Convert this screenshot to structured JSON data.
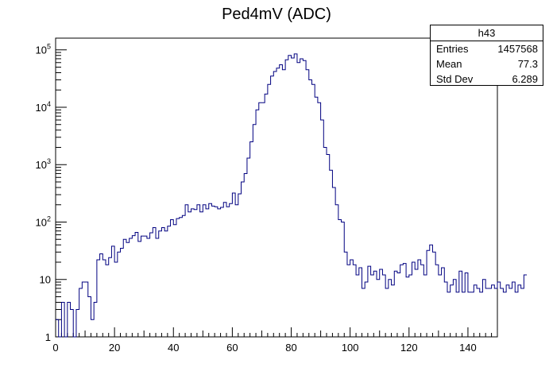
{
  "chart_data": {
    "type": "histogram",
    "title": "Ped4mV (ADC)",
    "xlabel": "",
    "ylabel": "",
    "y_scale": "log",
    "xlim": [
      0,
      150
    ],
    "ylim": [
      1,
      160000
    ],
    "bin_width": 1,
    "x_ticks": [
      0,
      20,
      40,
      60,
      80,
      100,
      120,
      140
    ],
    "y_ticks": [
      {
        "value": 1,
        "label_base": "1",
        "label_exp": ""
      },
      {
        "value": 10,
        "label_base": "10",
        "label_exp": ""
      },
      {
        "value": 100,
        "label_base": "10",
        "label_exp": "2"
      },
      {
        "value": 1000,
        "label_base": "10",
        "label_exp": "3"
      },
      {
        "value": 10000,
        "label_base": "10",
        "label_exp": "4"
      },
      {
        "value": 100000,
        "label_base": "10",
        "label_exp": "5"
      }
    ],
    "line_color": "#000080",
    "bin_contents": [
      2,
      1,
      4,
      1,
      4,
      3,
      1,
      3,
      7,
      9,
      9,
      5,
      2,
      4,
      22,
      28,
      22,
      18,
      24,
      38,
      20,
      30,
      35,
      50,
      44,
      52,
      58,
      66,
      46,
      57,
      57,
      52,
      65,
      80,
      52,
      70,
      80,
      70,
      85,
      110,
      90,
      115,
      120,
      130,
      200,
      150,
      170,
      165,
      200,
      150,
      200,
      170,
      210,
      190,
      185,
      170,
      180,
      220,
      185,
      210,
      320,
      200,
      310,
      500,
      700,
      1300,
      2500,
      5000,
      9000,
      12000,
      12000,
      17000,
      25000,
      35000,
      42000,
      48000,
      55000,
      45000,
      67000,
      80000,
      72000,
      85000,
      60000,
      70000,
      65000,
      45000,
      30000,
      25000,
      15000,
      12000,
      6000,
      2000,
      1500,
      800,
      400,
      200,
      110,
      100,
      30,
      18,
      22,
      18,
      12,
      16,
      7,
      9,
      17,
      12,
      14,
      10,
      15,
      12,
      7,
      10,
      8,
      14,
      13,
      18,
      19,
      11,
      12,
      20,
      15,
      22,
      18,
      12,
      32,
      40,
      30,
      18,
      12,
      16,
      9,
      6,
      8,
      10,
      6,
      14,
      6,
      13,
      6,
      6,
      8,
      7,
      6,
      10,
      7,
      7,
      8,
      7,
      9,
      7,
      6,
      8,
      7,
      9,
      6,
      8,
      7,
      12
    ]
  },
  "stats": {
    "title": "h43",
    "rows": [
      {
        "label": "Entries",
        "value": "1457568"
      },
      {
        "label": "Mean",
        "value": "77.3"
      },
      {
        "label": "Std Dev",
        "value": "6.289"
      }
    ]
  }
}
